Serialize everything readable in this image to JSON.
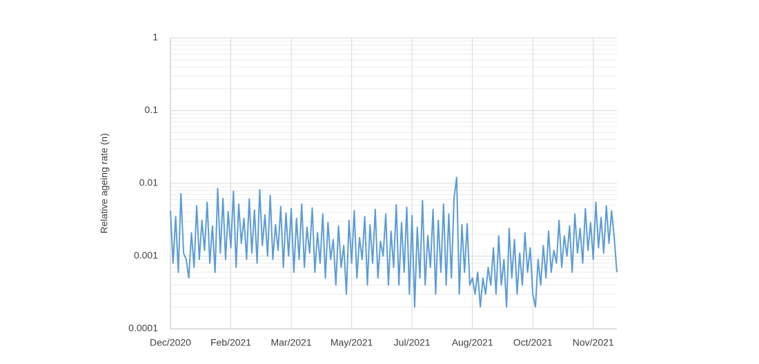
{
  "chart_data": {
    "type": "line",
    "y_label": "Relative ageing rate (n)",
    "log_y": true,
    "grid": true,
    "color": "#5b9bd5",
    "ylim": [
      0.0001,
      1
    ],
    "yticks": [
      0.0001,
      0.001,
      0.01,
      0.1,
      1
    ],
    "xlim": [
      0,
      170
    ],
    "xticks": [
      {
        "value": 0,
        "label": "Dec/2020"
      },
      {
        "value": 23,
        "label": "Feb/2021"
      },
      {
        "value": 46,
        "label": "Mar/2021"
      },
      {
        "value": 69,
        "label": "May/2021"
      },
      {
        "value": 92,
        "label": "Jul/2021"
      },
      {
        "value": 115,
        "label": "Aug/2021"
      },
      {
        "value": 138,
        "label": "Oct/2021"
      },
      {
        "value": 161,
        "label": "Nov/2021"
      }
    ],
    "values": [
      0.0042,
      0.0008,
      0.0035,
      0.0006,
      0.0072,
      0.0011,
      0.0009,
      0.0005,
      0.0021,
      0.0007,
      0.0049,
      0.0009,
      0.0031,
      0.0012,
      0.0055,
      0.0008,
      0.0026,
      0.0006,
      0.0085,
      0.0011,
      0.0062,
      0.0009,
      0.0041,
      0.0013,
      0.0078,
      0.0007,
      0.0052,
      0.0015,
      0.0033,
      0.0009,
      0.0061,
      0.0011,
      0.0043,
      0.0008,
      0.0082,
      0.0014,
      0.0037,
      0.001,
      0.0068,
      0.0009,
      0.0027,
      0.0012,
      0.0048,
      0.0007,
      0.0039,
      0.001,
      0.0045,
      0.0006,
      0.0033,
      0.0009,
      0.0052,
      0.0007,
      0.0025,
      0.0011,
      0.0046,
      0.0006,
      0.0021,
      0.0008,
      0.0038,
      0.0005,
      0.0029,
      0.0009,
      0.0017,
      0.0004,
      0.0026,
      0.0007,
      0.0014,
      0.0003,
      0.0031,
      0.0008,
      0.0042,
      0.0005,
      0.0018,
      0.0009,
      0.0035,
      0.0004,
      0.0027,
      0.0008,
      0.0044,
      0.0005,
      0.0016,
      0.001,
      0.0038,
      0.0004,
      0.0022,
      0.0007,
      0.0051,
      0.0004,
      0.0029,
      0.0006,
      0.0047,
      0.0003,
      0.0036,
      0.0002,
      0.0025,
      0.0005,
      0.0058,
      0.0004,
      0.0019,
      0.0007,
      0.0044,
      0.0003,
      0.0031,
      0.0006,
      0.0052,
      0.0004,
      0.0038,
      0.0005,
      0.0063,
      0.0121,
      0.0003,
      0.0027,
      0.0006,
      0.0028,
      0.0004,
      0.0005,
      0.0003,
      0.0006,
      0.0002,
      0.0005,
      0.0003,
      0.0007,
      0.0004,
      0.0013,
      0.0003,
      0.0019,
      0.0004,
      0.0009,
      0.0002,
      0.0024,
      0.0005,
      0.0017,
      0.0003,
      0.0011,
      0.0004,
      0.0021,
      0.0006,
      0.0013,
      0.0003,
      0.0002,
      0.0009,
      0.0004,
      0.0014,
      0.0005,
      0.0022,
      0.0006,
      0.0012,
      0.0008,
      0.0031,
      0.0007,
      0.0019,
      0.001,
      0.0026,
      0.0006,
      0.0038,
      0.0011,
      0.0024,
      0.0008,
      0.0045,
      0.0012,
      0.0029,
      0.0009,
      0.0055,
      0.0013,
      0.0034,
      0.0011,
      0.0049,
      0.0015,
      0.0042,
      0.0018,
      0.0006
    ]
  }
}
